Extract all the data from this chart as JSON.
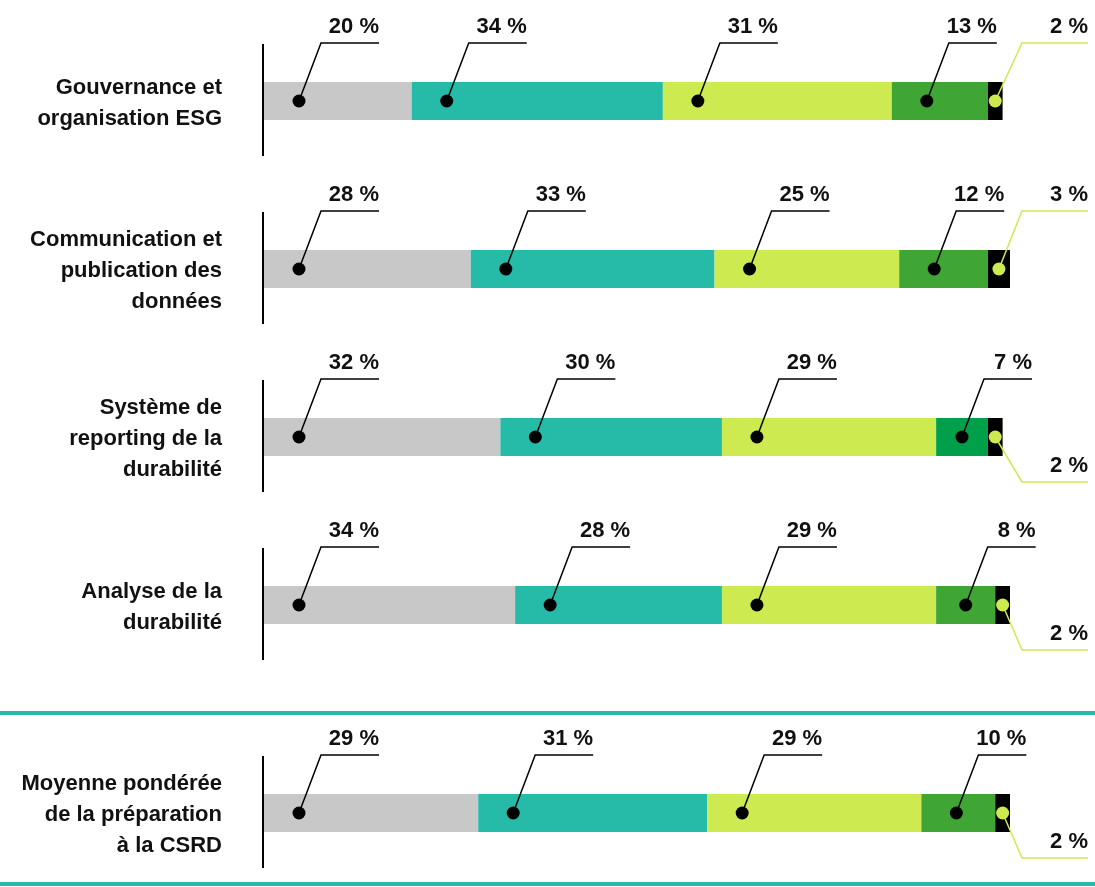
{
  "chart_data": {
    "type": "bar",
    "orientation": "horizontal",
    "stacked": true,
    "categories": [
      "Gouvernance et organisation ESG",
      "Communication et publication des données",
      "Système de reporting de la durabilité",
      "Analyse de la durabilité",
      "Moyenne pondérée de la préparation à la CSRD"
    ],
    "series": [
      {
        "color": "#c8c8c8",
        "values": [
          20,
          28,
          32,
          34,
          29
        ],
        "value_labels": [
          "20 %",
          "28 %",
          "32 %",
          "34 %",
          "29 %"
        ]
      },
      {
        "color": "#26bba8",
        "values": [
          34,
          33,
          30,
          28,
          31
        ],
        "value_labels": [
          "34 %",
          "33 %",
          "30 %",
          "28 %",
          "31 %"
        ]
      },
      {
        "color": "#cdea50",
        "values": [
          31,
          25,
          29,
          29,
          29
        ],
        "value_labels": [
          "31 %",
          "25 %",
          "29 %",
          "29 %",
          "29 %"
        ]
      },
      {
        "color": "#3fa535",
        "colors": [
          null,
          null,
          "#00a04a",
          null,
          null
        ],
        "values": [
          13,
          12,
          7,
          8,
          10
        ],
        "value_labels": [
          "13 %",
          "12 %",
          "7 %",
          "8 %",
          "10 %"
        ]
      },
      {
        "color": "#000000",
        "values": [
          2,
          3,
          2,
          2,
          2
        ],
        "value_labels": [
          "2 %",
          "3 %",
          "2 %",
          "2 %",
          "2 %"
        ]
      }
    ]
  }
}
